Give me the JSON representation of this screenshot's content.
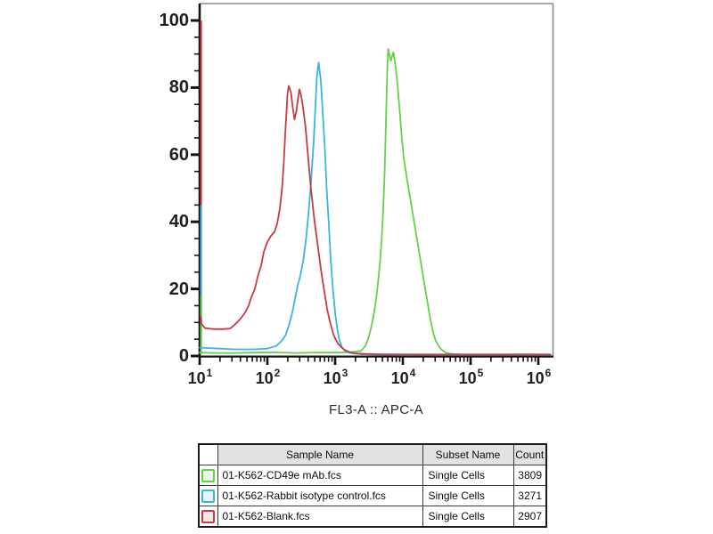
{
  "figure": {
    "frame_color": "#8c8c8c",
    "axis_color": "#141414",
    "background": "#ffffff"
  },
  "chart_data": {
    "type": "line",
    "subtype": "flow-cytometry-histogram-overlay",
    "title": "",
    "xlabel": "FL3-A :: APC-A",
    "ylabel": "",
    "x_scale": "log10",
    "x_range_log10": [
      1.0,
      6.2
    ],
    "x_tick_exponents": [
      1,
      2,
      3,
      4,
      5,
      6
    ],
    "x_tick_base": "10",
    "ylim": [
      0,
      100
    ],
    "y_ticks": [
      0,
      20,
      40,
      60,
      80,
      100
    ],
    "y_minor_step": 5,
    "grid": false,
    "legend_position": "table-below",
    "series": [
      {
        "name": "01-K562-CD49e mAb.fcs",
        "color": "#62d147",
        "edge_spike": {
          "x_log10": 1.0,
          "from": 0.5,
          "to": 18
        },
        "points": [
          [
            1.0,
            1
          ],
          [
            1.2,
            0.9
          ],
          [
            1.5,
            0.9
          ],
          [
            1.8,
            1
          ],
          [
            2.1,
            1.1
          ],
          [
            2.4,
            0.9
          ],
          [
            2.7,
            1
          ],
          [
            3.0,
            1
          ],
          [
            3.2,
            1.1
          ],
          [
            3.382,
            1.5
          ],
          [
            3.447,
            3
          ],
          [
            3.487,
            5
          ],
          [
            3.526,
            8
          ],
          [
            3.559,
            11
          ],
          [
            3.592,
            15
          ],
          [
            3.618,
            19
          ],
          [
            3.645,
            24
          ],
          [
            3.671,
            30
          ],
          [
            3.691,
            36
          ],
          [
            3.711,
            44
          ],
          [
            3.73,
            54
          ],
          [
            3.743,
            64
          ],
          [
            3.757,
            75
          ],
          [
            3.77,
            85
          ],
          [
            3.783,
            91.5
          ],
          [
            3.822,
            88
          ],
          [
            3.862,
            90.5
          ],
          [
            3.895,
            86
          ],
          [
            3.921,
            81
          ],
          [
            3.954,
            73
          ],
          [
            3.98,
            66
          ],
          [
            4.013,
            59
          ],
          [
            4.059,
            53
          ],
          [
            4.092,
            49
          ],
          [
            4.125,
            45
          ],
          [
            4.158,
            41
          ],
          [
            4.191,
            37
          ],
          [
            4.224,
            33
          ],
          [
            4.257,
            29
          ],
          [
            4.289,
            25
          ],
          [
            4.322,
            21
          ],
          [
            4.355,
            17
          ],
          [
            4.388,
            13
          ],
          [
            4.421,
            9.5
          ],
          [
            4.454,
            6.5
          ],
          [
            4.487,
            4.5
          ],
          [
            4.526,
            3
          ],
          [
            4.566,
            2
          ],
          [
            4.632,
            1
          ],
          [
            4.724,
            0.6
          ],
          [
            4.895,
            0.4
          ],
          [
            5.3,
            0.4
          ],
          [
            5.8,
            0.5
          ],
          [
            6.18,
            0.4
          ]
        ]
      },
      {
        "name": "01-K562-Rabbit isotype control.fcs",
        "color": "#38b7da",
        "edge_spike": {
          "x_log10": 1.0,
          "from": 2,
          "to": 45
        },
        "points": [
          [
            1.0,
            2.5
          ],
          [
            1.2,
            2.3
          ],
          [
            1.5,
            2
          ],
          [
            1.8,
            2
          ],
          [
            2.0,
            2.2
          ],
          [
            2.132,
            3
          ],
          [
            2.211,
            4.5
          ],
          [
            2.263,
            6
          ],
          [
            2.316,
            9
          ],
          [
            2.368,
            13
          ],
          [
            2.408,
            17
          ],
          [
            2.447,
            21
          ],
          [
            2.487,
            24
          ],
          [
            2.526,
            28
          ],
          [
            2.566,
            34
          ],
          [
            2.605,
            42
          ],
          [
            2.645,
            52
          ],
          [
            2.684,
            64
          ],
          [
            2.711,
            75
          ],
          [
            2.73,
            83
          ],
          [
            2.757,
            87.5
          ],
          [
            2.789,
            82
          ],
          [
            2.816,
            73
          ],
          [
            2.849,
            62
          ],
          [
            2.875,
            50
          ],
          [
            2.908,
            39
          ],
          [
            2.934,
            29
          ],
          [
            2.967,
            20
          ],
          [
            3.0,
            13
          ],
          [
            3.033,
            8
          ],
          [
            3.066,
            4.5
          ],
          [
            3.105,
            2.5
          ],
          [
            3.158,
            1.2
          ],
          [
            3.25,
            0.8
          ],
          [
            3.382,
            0.5
          ],
          [
            3.6,
            0.4
          ],
          [
            4.0,
            0.35
          ],
          [
            4.5,
            0.35
          ],
          [
            5.0,
            0.35
          ],
          [
            5.5,
            0.35
          ],
          [
            6.18,
            0.35
          ]
        ]
      },
      {
        "name": "01-K562-Blank.fcs",
        "color": "#c83b45",
        "edge_spike": {
          "x_log10": 1.0,
          "from": 7,
          "to": 100
        },
        "points": [
          [
            1.01,
            12
          ],
          [
            1.03,
            9.5
          ],
          [
            1.079,
            8.3
          ],
          [
            1.211,
            8
          ],
          [
            1.342,
            8
          ],
          [
            1.447,
            8.2
          ],
          [
            1.5,
            9
          ],
          [
            1.566,
            10.3
          ],
          [
            1.618,
            11.5
          ],
          [
            1.671,
            13
          ],
          [
            1.724,
            15
          ],
          [
            1.763,
            17.5
          ],
          [
            1.816,
            20
          ],
          [
            1.855,
            23.5
          ],
          [
            1.908,
            27
          ],
          [
            1.947,
            31
          ],
          [
            2.0,
            34
          ],
          [
            2.053,
            35.8
          ],
          [
            2.105,
            37
          ],
          [
            2.145,
            39.5
          ],
          [
            2.184,
            44
          ],
          [
            2.217,
            50
          ],
          [
            2.243,
            58
          ],
          [
            2.263,
            66
          ],
          [
            2.283,
            73
          ],
          [
            2.296,
            78
          ],
          [
            2.316,
            80.5
          ],
          [
            2.349,
            78.5
          ],
          [
            2.375,
            74
          ],
          [
            2.401,
            70.5
          ],
          [
            2.428,
            73
          ],
          [
            2.454,
            77
          ],
          [
            2.474,
            79.5
          ],
          [
            2.5,
            77.5
          ],
          [
            2.526,
            74
          ],
          [
            2.559,
            69
          ],
          [
            2.586,
            63
          ],
          [
            2.612,
            57
          ],
          [
            2.638,
            51
          ],
          [
            2.664,
            46
          ],
          [
            2.691,
            41
          ],
          [
            2.724,
            36
          ],
          [
            2.757,
            31
          ],
          [
            2.789,
            26
          ],
          [
            2.822,
            21.5
          ],
          [
            2.855,
            17.5
          ],
          [
            2.882,
            14
          ],
          [
            2.914,
            11
          ],
          [
            2.947,
            8.5
          ],
          [
            2.974,
            6.5
          ],
          [
            3.007,
            5
          ],
          [
            3.046,
            3.6
          ],
          [
            3.092,
            2.6
          ],
          [
            3.145,
            1.8
          ],
          [
            3.211,
            1.2
          ],
          [
            3.303,
            0.8
          ],
          [
            3.447,
            0.6
          ],
          [
            3.711,
            0.5
          ],
          [
            4.2,
            0.45
          ],
          [
            4.8,
            0.45
          ],
          [
            5.5,
            0.45
          ],
          [
            6.18,
            0.45
          ]
        ]
      }
    ]
  },
  "table": {
    "headers": {
      "sample": "Sample Name",
      "subset": "Subset Name",
      "count": "Count"
    },
    "rows": [
      {
        "color": "#62d147",
        "sample": "01-K562-CD49e mAb.fcs",
        "subset": "Single Cells",
        "count": "3809"
      },
      {
        "color": "#38b7da",
        "sample": "01-K562-Rabbit isotype control.fcs",
        "subset": "Single Cells",
        "count": "3271"
      },
      {
        "color": "#c83b45",
        "sample": "01-K562-Blank.fcs",
        "subset": "Single Cells",
        "count": "2907"
      }
    ]
  }
}
